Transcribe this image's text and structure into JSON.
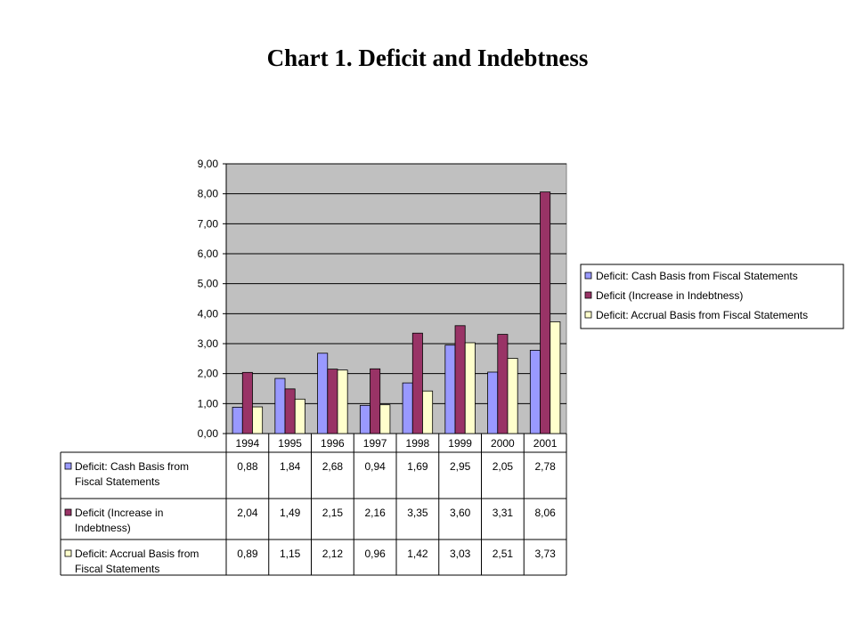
{
  "title": "Chart 1. Deficit and Indebtness",
  "colors": {
    "plot_bg": "#c0c0c0",
    "grid": "#000000"
  },
  "chart_data": {
    "type": "bar",
    "title": "Chart 1. Deficit and Indebtness",
    "categories": [
      "1994",
      "1995",
      "1996",
      "1997",
      "1998",
      "1999",
      "2000",
      "2001"
    ],
    "y_ticks": [
      "0,00",
      "1,00",
      "2,00",
      "3,00",
      "4,00",
      "5,00",
      "6,00",
      "7,00",
      "8,00",
      "9,00"
    ],
    "ylim": [
      0,
      9
    ],
    "grid": true,
    "legend_position": "right",
    "series": [
      {
        "name": "Deficit: Cash Basis from Fiscal Statements",
        "table_label": [
          "Deficit: Cash Basis from",
          "Fiscal Statements"
        ],
        "color": "#9999ff",
        "values": [
          0.88,
          1.84,
          2.68,
          0.94,
          1.69,
          2.95,
          2.05,
          2.78
        ],
        "labels": [
          "0,88",
          "1,84",
          "2,68",
          "0,94",
          "1,69",
          "2,95",
          "2,05",
          "2,78"
        ]
      },
      {
        "name": "Deficit (Increase in Indebtness)",
        "table_label": [
          "Deficit (Increase in",
          "Indebtness)"
        ],
        "color": "#993366",
        "values": [
          2.04,
          1.49,
          2.15,
          2.16,
          3.35,
          3.6,
          3.31,
          8.06
        ],
        "labels": [
          "2,04",
          "1,49",
          "2,15",
          "2,16",
          "3,35",
          "3,60",
          "3,31",
          "8,06"
        ]
      },
      {
        "name": "Deficit: Accrual Basis from Fiscal Statements",
        "table_label": [
          "Deficit: Accrual Basis from",
          "Fiscal Statements"
        ],
        "color": "#ffffcc",
        "values": [
          0.89,
          1.15,
          2.12,
          0.96,
          1.42,
          3.03,
          2.51,
          3.73
        ],
        "labels": [
          "0,89",
          "1,15",
          "2,12",
          "0,96",
          "1,42",
          "3,03",
          "2,51",
          "3,73"
        ]
      }
    ]
  }
}
